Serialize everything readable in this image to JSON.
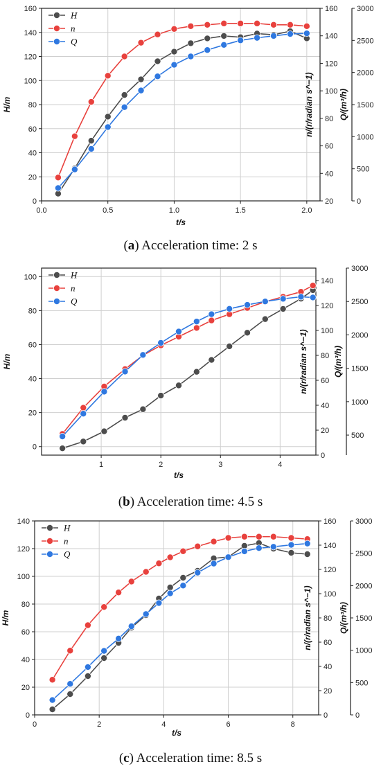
{
  "colors": {
    "H": "#4d4d4d",
    "n": "#e8413d",
    "Q": "#2f78e0",
    "grid": "#cfcfcf"
  },
  "chart_data": [
    {
      "type": "line",
      "caption": {
        "label": "a",
        "text": "Acceleration time: 2 s"
      },
      "xlabel": "t/s",
      "y_left_label": "H/m",
      "y_right1_label": "n/(r/radian s^−1)",
      "y_right2_label": "Q/(m³/h)",
      "xlim": [
        0,
        2.1
      ],
      "xticks": [
        0.0,
        0.5,
        1.0,
        1.5,
        2.0
      ],
      "xtick_labels": [
        "0.0",
        "0.5",
        "1.0",
        "1.5",
        "2.0"
      ],
      "ylim_left": [
        0,
        160
      ],
      "yticks_left": [
        0,
        20,
        40,
        60,
        80,
        100,
        120,
        140,
        160
      ],
      "ylim_right1": [
        20,
        160
      ],
      "yticks_right1": [
        20,
        40,
        60,
        80,
        100,
        120,
        140,
        160
      ],
      "ylim_right2": [
        0,
        3000
      ],
      "yticks_right2": [
        0,
        500,
        1000,
        1500,
        2000,
        2500,
        3000
      ],
      "grid": true,
      "legend": "top-left",
      "series": [
        {
          "name": "H",
          "color_key": "H",
          "axis": "left",
          "x": [
            0.125,
            0.25,
            0.375,
            0.5,
            0.625,
            0.75,
            0.875,
            1.0,
            1.125,
            1.25,
            1.375,
            1.5,
            1.625,
            1.75,
            1.875,
            2.0
          ],
          "values": [
            6,
            27,
            50,
            70,
            88,
            101,
            116,
            124,
            131,
            135,
            137,
            136,
            139,
            138,
            141,
            135
          ]
        },
        {
          "name": "n",
          "color_key": "n",
          "axis": "right1",
          "x": [
            0.125,
            0.25,
            0.375,
            0.5,
            0.625,
            0.75,
            0.875,
            1.0,
            1.125,
            1.25,
            1.375,
            1.5,
            1.625,
            1.75,
            1.875,
            2.0
          ],
          "values": [
            37,
            67,
            92,
            111,
            125,
            135,
            141,
            145,
            147,
            148,
            149,
            149,
            149,
            148,
            148,
            147
          ]
        },
        {
          "name": "Q",
          "color_key": "Q",
          "axis": "right2",
          "x": [
            0.125,
            0.25,
            0.375,
            0.5,
            0.625,
            0.75,
            0.875,
            1.0,
            1.125,
            1.25,
            1.375,
            1.5,
            1.625,
            1.75,
            1.875,
            2.0
          ],
          "values": [
            200,
            490,
            810,
            1150,
            1460,
            1720,
            1940,
            2120,
            2250,
            2350,
            2430,
            2500,
            2540,
            2570,
            2600,
            2610
          ]
        }
      ]
    },
    {
      "type": "line",
      "caption": {
        "label": "b",
        "text": "Acceleration time: 4.5 s"
      },
      "xlabel": "t/s",
      "y_left_label": "H/m",
      "y_right1_label": "n/(r/radian s^−1)",
      "y_right2_label": "Q/(m³/h)",
      "xlim": [
        0,
        4.6
      ],
      "xticks": [
        1,
        2,
        3,
        4
      ],
      "xtick_labels": [
        "1",
        "2",
        "3",
        "4"
      ],
      "ylim_left": [
        -5,
        105
      ],
      "yticks_left": [
        0,
        20,
        40,
        60,
        80,
        100
      ],
      "ylim_right1": [
        0,
        150
      ],
      "yticks_right1": [
        0,
        20,
        40,
        60,
        80,
        100,
        120,
        140
      ],
      "ylim_right2": [
        200,
        3000
      ],
      "yticks_right2": [
        500,
        1000,
        1500,
        2000,
        2500,
        3000
      ],
      "grid": true,
      "legend": "top-left",
      "series": [
        {
          "name": "H",
          "color_key": "H",
          "axis": "left",
          "x": [
            0.35,
            0.7,
            1.05,
            1.4,
            1.7,
            2.0,
            2.3,
            2.6,
            2.85,
            3.15,
            3.45,
            3.75,
            4.05,
            4.35,
            4.55
          ],
          "values": [
            -1,
            3,
            9,
            17,
            22,
            30,
            36,
            44,
            51,
            59,
            67,
            75,
            81,
            87,
            92
          ]
        },
        {
          "name": "n",
          "color_key": "n",
          "axis": "right1",
          "x": [
            0.35,
            0.7,
            1.05,
            1.4,
            1.7,
            2.0,
            2.3,
            2.6,
            2.85,
            3.15,
            3.45,
            3.75,
            4.05,
            4.35,
            4.55
          ],
          "values": [
            17,
            38,
            55,
            69,
            80,
            88,
            95,
            102,
            108,
            113,
            118,
            123,
            127,
            131,
            136
          ]
        },
        {
          "name": "Q",
          "color_key": "Q",
          "axis": "right2",
          "x": [
            0.35,
            0.7,
            1.05,
            1.4,
            1.7,
            2.0,
            2.3,
            2.6,
            2.85,
            3.15,
            3.45,
            3.75,
            4.05,
            4.35,
            4.55
          ],
          "values": [
            480,
            820,
            1150,
            1450,
            1700,
            1880,
            2050,
            2200,
            2310,
            2390,
            2450,
            2500,
            2540,
            2570,
            2560
          ]
        }
      ]
    },
    {
      "type": "line",
      "caption": {
        "label": "c",
        "text": "Acceleration time: 8.5 s"
      },
      "xlabel": "t/s",
      "y_left_label": "H/m",
      "y_right1_label": "n/(r/radian s^−1)",
      "y_right2_label": "Q/(m³/h)",
      "xlim": [
        0,
        8.8
      ],
      "xticks": [
        0,
        2,
        4,
        6,
        8
      ],
      "xtick_labels": [
        "0",
        "2",
        "4",
        "6",
        "8"
      ],
      "ylim_left": [
        0,
        140
      ],
      "yticks_left": [
        0,
        20,
        40,
        60,
        80,
        100,
        120,
        140
      ],
      "ylim_right1": [
        0,
        160
      ],
      "yticks_right1": [
        0,
        20,
        40,
        60,
        80,
        100,
        120,
        140,
        160
      ],
      "ylim_right2": [
        0,
        3000
      ],
      "yticks_right2": [
        0,
        500,
        1000,
        1500,
        2000,
        2500,
        3000
      ],
      "grid": true,
      "legend": "top-left",
      "series": [
        {
          "name": "H",
          "color_key": "H",
          "axis": "left",
          "x": [
            0.55,
            1.1,
            1.65,
            2.15,
            2.6,
            3.0,
            3.45,
            3.85,
            4.2,
            4.6,
            5.05,
            5.55,
            6.0,
            6.5,
            6.95,
            7.4,
            7.95,
            8.45
          ],
          "values": [
            4,
            15,
            28,
            41,
            52,
            63,
            72,
            84,
            92,
            99,
            104,
            113,
            114,
            122,
            124,
            120,
            117,
            116
          ]
        },
        {
          "name": "n",
          "color_key": "n",
          "axis": "right1",
          "x": [
            0.55,
            1.1,
            1.65,
            2.15,
            2.6,
            3.0,
            3.45,
            3.85,
            4.2,
            4.6,
            5.05,
            5.55,
            6.0,
            6.5,
            6.95,
            7.4,
            7.95,
            8.45
          ],
          "values": [
            29,
            53,
            74,
            89,
            101,
            110,
            118,
            125,
            130,
            135,
            139,
            143,
            146,
            147,
            147,
            147,
            146,
            145
          ]
        },
        {
          "name": "Q",
          "color_key": "Q",
          "axis": "right2",
          "x": [
            0.55,
            1.1,
            1.65,
            2.15,
            2.6,
            3.0,
            3.45,
            3.85,
            4.2,
            4.6,
            5.05,
            5.55,
            6.0,
            6.5,
            6.95,
            7.4,
            7.95,
            8.45
          ],
          "values": [
            230,
            480,
            740,
            990,
            1180,
            1370,
            1560,
            1730,
            1880,
            2000,
            2200,
            2340,
            2440,
            2530,
            2580,
            2600,
            2630,
            2650
          ]
        }
      ]
    }
  ]
}
